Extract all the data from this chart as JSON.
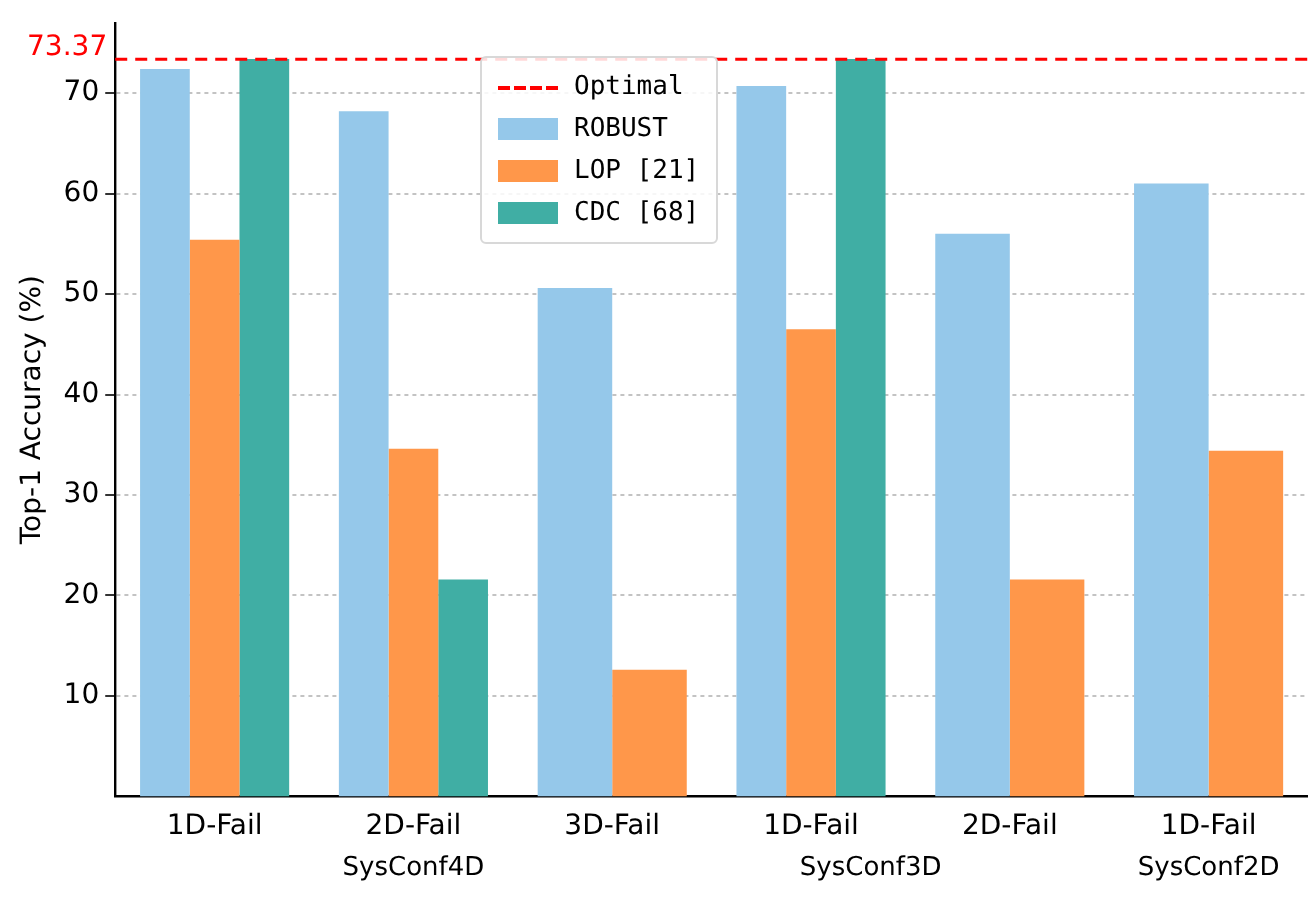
{
  "chart_data": {
    "type": "bar",
    "ylabel": "Top-1 Accuracy (%)",
    "categories": [
      "1D-Fail",
      "2D-Fail",
      "3D-Fail",
      "1D-Fail",
      "2D-Fail",
      "1D-Fail"
    ],
    "series": [
      {
        "name": "ROBUST",
        "color": "#95c8ea",
        "values": [
          72.4,
          68.2,
          50.6,
          70.7,
          56.0,
          61.0
        ]
      },
      {
        "name": "LOP [21]",
        "color": "#ff974a",
        "values": [
          55.4,
          34.6,
          12.6,
          46.5,
          21.6,
          34.4
        ]
      },
      {
        "name": "CDC [68]",
        "color": "#40aea4",
        "values": [
          73.4,
          21.6,
          null,
          73.4,
          null,
          null
        ]
      }
    ],
    "ylim": [
      0,
      77
    ],
    "yticks": [
      10,
      20,
      30,
      40,
      50,
      60,
      70
    ],
    "grid": "y",
    "legend": "top",
    "ref_lines": [
      {
        "axis": "y",
        "value": 73.37,
        "label": "Optimal",
        "color": "#ff0000",
        "line_style": "dashed"
      }
    ],
    "annotations": [
      "SysConf4D",
      "SysConf3D",
      "SysConf2D",
      "73.37"
    ]
  }
}
